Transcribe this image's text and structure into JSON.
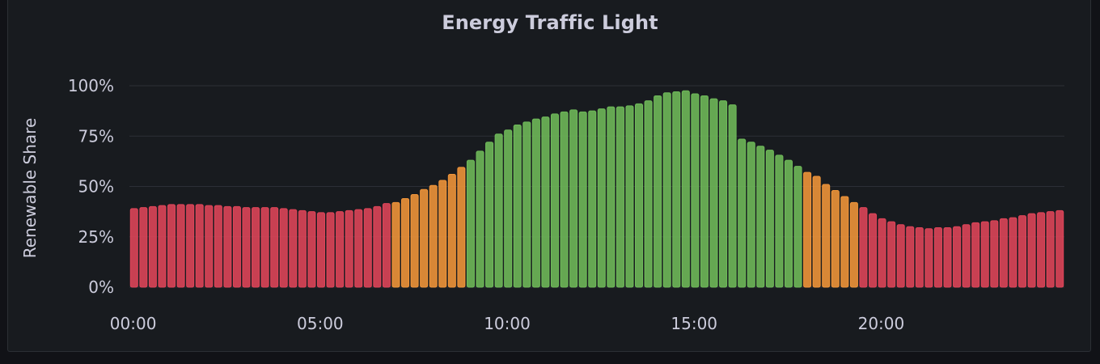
{
  "panel": {
    "title": "Energy Traffic Light"
  },
  "colors": {
    "red": "#e0455a",
    "orange": "#f2963a",
    "green": "#6fbb5a",
    "background": "#181b1f",
    "grid": "#2c2f36"
  },
  "chart_data": {
    "type": "bar",
    "title": "Energy Traffic Light",
    "ylabel": "Renewable Share",
    "xlabel": "",
    "ylim": [
      0,
      100
    ],
    "yticks": [
      "0%",
      "25%",
      "50%",
      "75%",
      "100%"
    ],
    "xticks": [
      "00:00",
      "05:00",
      "10:00",
      "15:00",
      "20:00"
    ],
    "xtick_hours": [
      0,
      5,
      10,
      15,
      20
    ],
    "x_start_hour": 0,
    "x_step_minutes": 15,
    "thresholds": {
      "orange": 42,
      "green": 60
    },
    "grid": true,
    "values": [
      39,
      39.5,
      40,
      40.5,
      41,
      41,
      41,
      41,
      40.5,
      40.5,
      40,
      40,
      39.5,
      39.5,
      39.5,
      39.5,
      39,
      38.5,
      38,
      37.5,
      37,
      37,
      37.5,
      38,
      38.5,
      39,
      40,
      41.5,
      42,
      44,
      46,
      48.5,
      50.5,
      53,
      56,
      59.5,
      63,
      67.5,
      72,
      76,
      78,
      80.5,
      82,
      83.5,
      84.5,
      86,
      87,
      88,
      87,
      87.5,
      88.5,
      89.5,
      89.5,
      90,
      91,
      92.5,
      95,
      96.5,
      97,
      97.5,
      96,
      95,
      93.5,
      92.5,
      90.5,
      73.5,
      72,
      70,
      68,
      65.5,
      63,
      60,
      57,
      55,
      51,
      48,
      45,
      42,
      39.5,
      36.5,
      34,
      32.5,
      31,
      30,
      29.5,
      29,
      29.5,
      29.5,
      30,
      31,
      32,
      32.5,
      33,
      34,
      34.5,
      35.5,
      36.5,
      37,
      37.5,
      38
    ]
  }
}
